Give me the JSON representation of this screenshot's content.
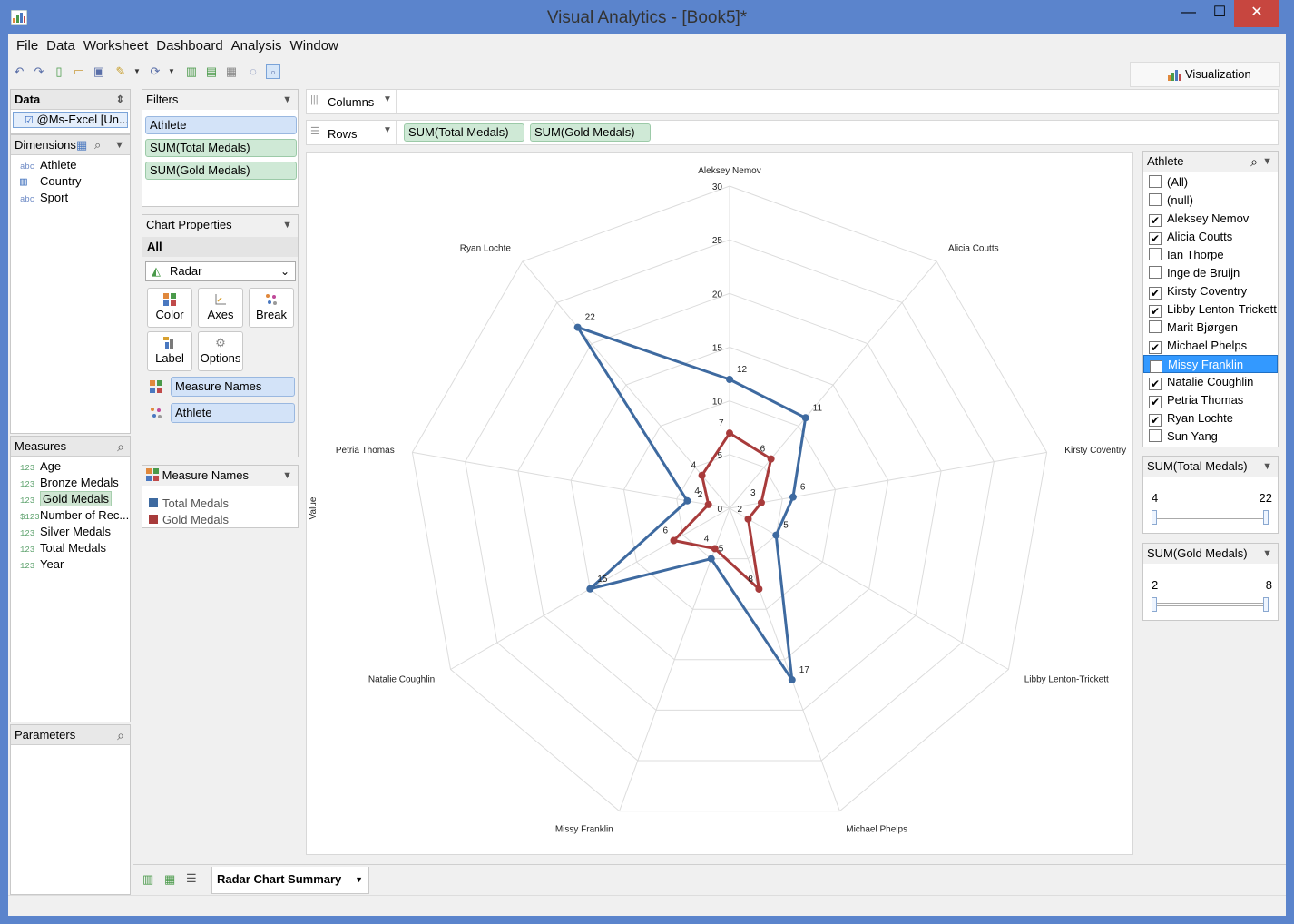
{
  "window": {
    "title": "Visual Analytics - [Book5]*",
    "minimize": "—",
    "maximize": "☐",
    "close": "✕"
  },
  "menu": [
    "File",
    "Data",
    "Worksheet",
    "Dashboard",
    "Analysis",
    "Window"
  ],
  "visualization_button": "Visualization",
  "data_panel": {
    "header": "Data",
    "source": "@Ms-Excel [Un..."
  },
  "dimensions": {
    "header": "Dimensions",
    "items": [
      {
        "icon": "abc",
        "label": "Athlete"
      },
      {
        "icon": "bar-chart-icon",
        "label": "Country"
      },
      {
        "icon": "abc",
        "label": "Sport"
      }
    ]
  },
  "measures": {
    "header": "Measures",
    "items": [
      {
        "icon": "123",
        "label": "Age"
      },
      {
        "icon": "123",
        "label": "Bronze Medals"
      },
      {
        "icon": "123",
        "label": "Gold Medals"
      },
      {
        "icon": "$123",
        "label": "Number of Rec..."
      },
      {
        "icon": "123",
        "label": "Silver Medals"
      },
      {
        "icon": "123",
        "label": "Total Medals"
      },
      {
        "icon": "123",
        "label": "Year"
      }
    ]
  },
  "parameters": {
    "header": "Parameters"
  },
  "filters": {
    "header": "Filters",
    "items": [
      "Athlete",
      "SUM(Total Medals)",
      "SUM(Gold Medals)"
    ]
  },
  "chart_properties": {
    "header": "Chart Properties",
    "scope": "All",
    "chart_type": "Radar",
    "buttons": [
      "Color",
      "Axes",
      "Break",
      "Label",
      "Options"
    ],
    "marks": [
      "Measure Names",
      "Athlete"
    ]
  },
  "legend": {
    "header": "Measure Names",
    "items": [
      {
        "label": "Total Medals",
        "color": "#3e6aa0"
      },
      {
        "label": "Gold Medals",
        "color": "#a83b3b"
      }
    ]
  },
  "shelves": {
    "columns": "Columns",
    "rows": "Rows",
    "row_pills": [
      "SUM(Total Medals)",
      "SUM(Gold Medals)"
    ]
  },
  "athlete_filter": {
    "header": "Athlete",
    "items": [
      {
        "label": "(All)",
        "checked": false
      },
      {
        "label": "(null)",
        "checked": false
      },
      {
        "label": "Aleksey Nemov",
        "checked": true
      },
      {
        "label": "Alicia Coutts",
        "checked": true
      },
      {
        "label": "Ian Thorpe",
        "checked": false
      },
      {
        "label": "Inge de Bruijn",
        "checked": false
      },
      {
        "label": "Kirsty Coventry",
        "checked": true
      },
      {
        "label": "Libby Lenton-Trickett",
        "checked": true
      },
      {
        "label": "Marit Bjørgen",
        "checked": false
      },
      {
        "label": "Michael Phelps",
        "checked": true
      },
      {
        "label": "Missy Franklin",
        "checked": true,
        "selected": true
      },
      {
        "label": "Natalie Coughlin",
        "checked": true
      },
      {
        "label": "Petria Thomas",
        "checked": true
      },
      {
        "label": "Ryan Lochte",
        "checked": true
      },
      {
        "label": "Sun Yang",
        "checked": false
      }
    ]
  },
  "range_total": {
    "header": "SUM(Total Medals)",
    "min": "4",
    "max": "22"
  },
  "range_gold": {
    "header": "SUM(Gold Medals)",
    "min": "2",
    "max": "8"
  },
  "sheet_tab": "Radar Chart Summary",
  "chart_data": {
    "type": "radar",
    "ylabel": "Value",
    "categories": [
      "Aleksey Nemov",
      "Alicia Coutts",
      "Kirsty Coventry",
      "Libby Lenton-Trickett",
      "Michael Phelps",
      "Missy Franklin",
      "Natalie Coughlin",
      "Petria Thomas",
      "Ryan Lochte"
    ],
    "rlim": [
      0,
      30
    ],
    "ticks": [
      "0",
      "5",
      "10",
      "15",
      "20",
      "25",
      "30"
    ],
    "grid": true,
    "series": [
      {
        "name": "Total Medals",
        "color": "#3e6aa0",
        "values": [
          12,
          11,
          6,
          5,
          17,
          5,
          15,
          4,
          22
        ]
      },
      {
        "name": "Gold Medals",
        "color": "#a83b3b",
        "values": [
          7,
          6,
          3,
          2,
          8,
          4,
          6,
          2,
          4
        ]
      }
    ]
  }
}
